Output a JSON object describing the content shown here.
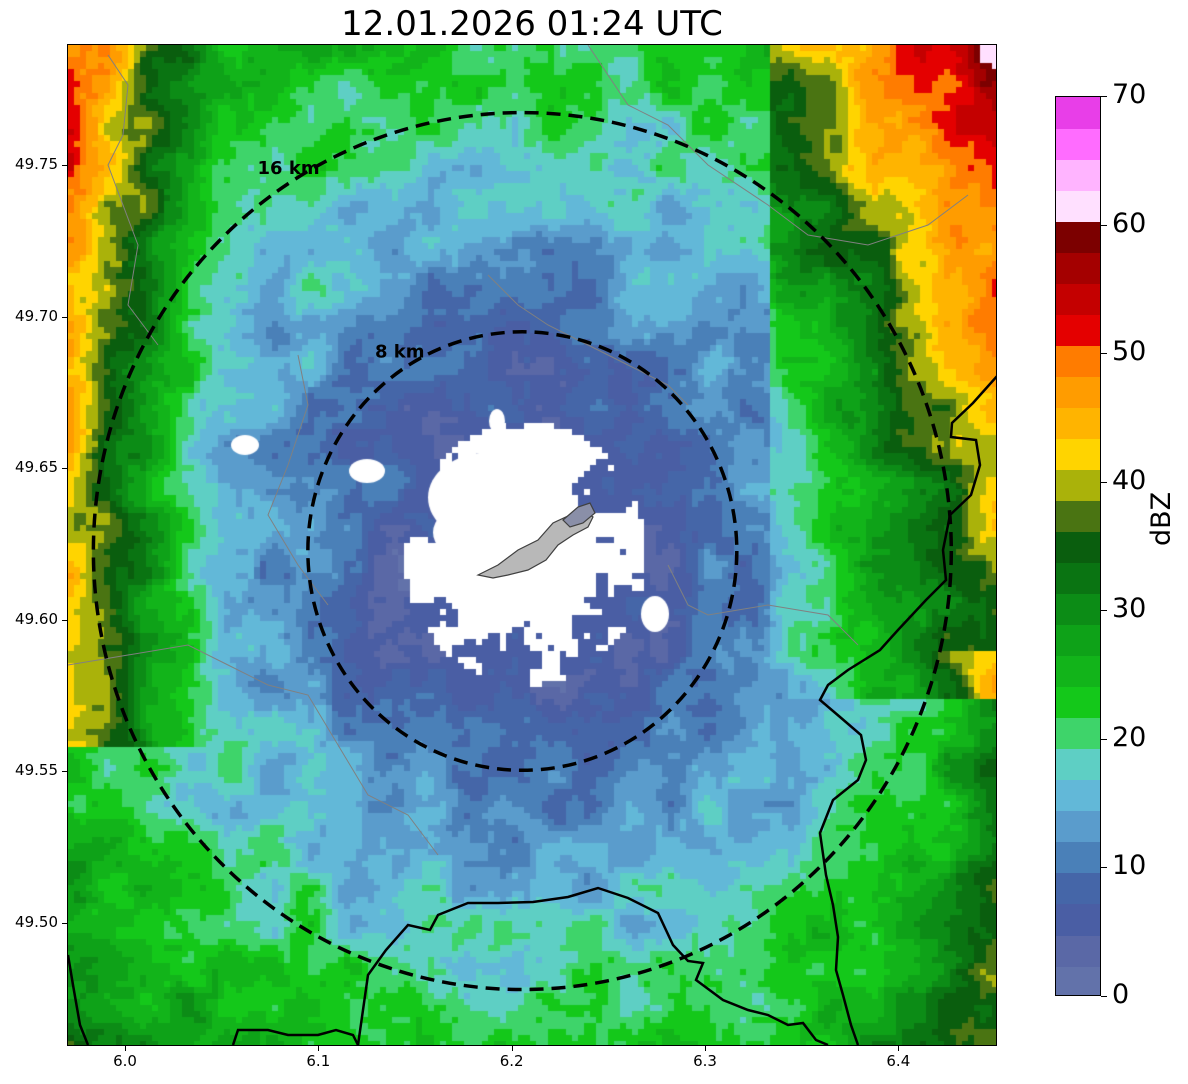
{
  "title": "12.01.2026 01:24 UTC",
  "map": {
    "lon_range": [
      5.97,
      6.45
    ],
    "lat_range": [
      49.46,
      49.79
    ],
    "center": {
      "lon": 6.205,
      "lat": 49.623
    },
    "rings": [
      {
        "label": "8 km",
        "radius_km": 8
      },
      {
        "label": "16 km",
        "radius_km": 16
      }
    ],
    "x_ticks": [
      "6.0",
      "6.1",
      "6.2",
      "6.3",
      "6.4"
    ],
    "x_tick_values": [
      6.0,
      6.1,
      6.2,
      6.3,
      6.4
    ],
    "y_ticks": [
      "49.50",
      "49.55",
      "49.60",
      "49.65",
      "49.70",
      "49.75"
    ],
    "y_tick_values": [
      49.5,
      49.55,
      49.6,
      49.65,
      49.7,
      49.75
    ],
    "colors": {
      "boundary": "#000000",
      "internal_boundary": "#808080",
      "city_fill": "#b8b8b8",
      "no_echo": "#ffffff"
    }
  },
  "colorbar": {
    "label": "dBZ",
    "min": 0,
    "max": 70,
    "tick_labels": [
      "0",
      "10",
      "20",
      "30",
      "40",
      "50",
      "60",
      "70"
    ],
    "tick_values": [
      0,
      10,
      20,
      30,
      40,
      50,
      60,
      70
    ],
    "colors": [
      "#6272aa",
      "#5a68a6",
      "#4a5ea4",
      "#4566a8",
      "#4a80b8",
      "#5a9ccc",
      "#62b8d8",
      "#5ecfc4",
      "#3ed46a",
      "#14c81a",
      "#12b41a",
      "#0ea218",
      "#0c8c16",
      "#0a7412",
      "#0a5e0e",
      "#4a7412",
      "#aab20a",
      "#ffd400",
      "#ffb400",
      "#ff9c00",
      "#ff7c00",
      "#e40000",
      "#c40000",
      "#a40000",
      "#7c0000",
      "#ffe0ff",
      "#ffb4ff",
      "#ff6cff",
      "#e83ee8"
    ]
  }
}
